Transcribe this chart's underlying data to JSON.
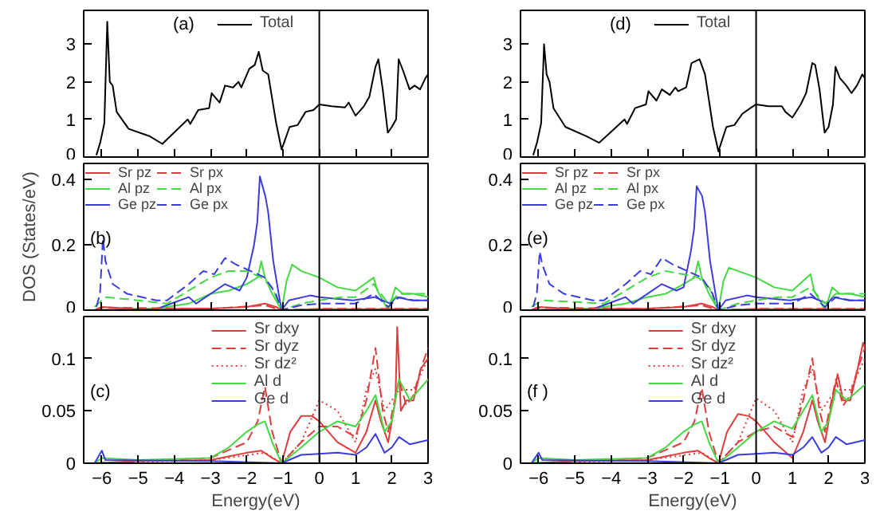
{
  "chart_data": [
    {
      "type": "line",
      "xlim": [
        -6.5,
        3
      ],
      "xticks": [
        -6,
        -5,
        -4,
        -3,
        -2,
        -1,
        0,
        1,
        2,
        3
      ],
      "ylim": [
        0,
        3.9
      ],
      "yticks": [
        0,
        1,
        2,
        3
      ],
      "tick_labels": "y",
      "legend": "top",
      "annotations": [
        "(a)"
      ],
      "ref_lines": [
        {
          "axis": "x",
          "value": 0,
          "color": "#000000"
        }
      ],
      "series": [
        {
          "name": "Total",
          "color": "#000000",
          "line_style": "solid",
          "x": [
            -6.15,
            -6.04,
            -5.93,
            -5.85,
            -5.78,
            -5.7,
            -5.59,
            -5.26,
            -4.67,
            -4.33,
            -3.63,
            -3.56,
            -3.34,
            -3.04,
            -2.97,
            -2.75,
            -2.6,
            -2.38,
            -2.23,
            -2.15,
            -1.93,
            -1.78,
            -1.67,
            -1.56,
            -1.41,
            -1.19,
            -1.04,
            -0.82,
            -0.6,
            -0.38,
            -0.16,
            0,
            0.34,
            0.71,
            0.81,
            1.0,
            1.23,
            1.38,
            1.55,
            1.63,
            1.75,
            1.89,
            2.0,
            2.12,
            2.19,
            2.31,
            2.49,
            2.63,
            2.78,
            2.93,
            3.0
          ],
          "values": [
            0.05,
            0.4,
            0.9,
            3.6,
            2.0,
            1.9,
            1.2,
            0.75,
            0.55,
            0.35,
            1.0,
            0.88,
            1.25,
            1.3,
            1.7,
            1.45,
            1.9,
            1.85,
            2.0,
            1.85,
            2.35,
            2.45,
            2.8,
            2.3,
            2.2,
            0.9,
            0.2,
            0.8,
            0.85,
            1.2,
            1.25,
            1.4,
            1.35,
            1.32,
            1.45,
            1.1,
            1.35,
            1.6,
            2.4,
            2.6,
            1.8,
            0.65,
            0.8,
            1.0,
            2.6,
            2.3,
            1.8,
            1.9,
            1.8,
            2.1,
            2.2
          ]
        }
      ]
    },
    {
      "type": "line",
      "xlim": [
        -6.5,
        3
      ],
      "xticks": [
        -6,
        -5,
        -4,
        -3,
        -2,
        -1,
        0,
        1,
        2,
        3
      ],
      "ylim": [
        0,
        0.45
      ],
      "yticks": [
        0,
        0.2,
        0.4
      ],
      "tick_labels": "y",
      "legend": "top",
      "ylabel": "DOS (States/eV)",
      "annotations": [
        "(b)"
      ],
      "ref_lines": [
        {
          "axis": "x",
          "value": 0,
          "color": "#000000"
        }
      ],
      "series": [
        {
          "name": "Sr pz",
          "color": "#e03c3c",
          "line_style": "solid",
          "x": [
            -6.2,
            -6,
            -5,
            -3,
            -2,
            -1.5,
            -1.2,
            -1.04,
            0,
            3
          ],
          "values": [
            0,
            0.01,
            0.003,
            0.005,
            0.01,
            0.02,
            0.01,
            0,
            0.003,
            0.003
          ]
        },
        {
          "name": "Al pz",
          "color": "#44d844",
          "line_style": "solid",
          "x": [
            -6.2,
            -4.5,
            -3.6,
            -3.0,
            -2.5,
            -2.0,
            -1.7,
            -1.6,
            -1.5,
            -1.3,
            -1.04,
            -0.9,
            -0.75,
            -0.5,
            0,
            0.5,
            1.0,
            1.5,
            1.6,
            1.9,
            2.1,
            2.3,
            2.6,
            3.0
          ],
          "values": [
            0,
            0.005,
            0.02,
            0.05,
            0.06,
            0.08,
            0.1,
            0.15,
            0.1,
            0.05,
            0,
            0.09,
            0.14,
            0.12,
            0.1,
            0.07,
            0.06,
            0.1,
            0.06,
            0,
            0.07,
            0.05,
            0.05,
            0.04
          ]
        },
        {
          "name": "Ge pz",
          "color": "#3c3ce0",
          "line_style": "solid",
          "x": [
            -6.2,
            -4.5,
            -3.6,
            -3.4,
            -3.0,
            -2.6,
            -2.2,
            -2.0,
            -1.8,
            -1.71,
            -1.64,
            -1.49,
            -1.41,
            -1.27,
            -1.12,
            -1.04,
            -0.84,
            -0.25,
            0,
            0.93,
            1.52,
            1.97,
            2.12,
            2.56,
            3.0
          ],
          "values": [
            0,
            0.003,
            0.04,
            0.02,
            0.05,
            0.08,
            0.06,
            0.1,
            0.2,
            0.27,
            0.41,
            0.35,
            0.3,
            0.15,
            0.05,
            0,
            0.03,
            0.045,
            0.04,
            0.03,
            0.04,
            0.02,
            0.04,
            0.03,
            0.03
          ]
        },
        {
          "name": "Sr px",
          "color": "#e03c3c",
          "line_style": "dashed",
          "x": [
            -6.2,
            -6,
            -3,
            -1.5,
            -1.04,
            0,
            3
          ],
          "values": [
            0,
            0.008,
            0.004,
            0.015,
            0,
            0.004,
            0.004
          ]
        },
        {
          "name": "Al px",
          "color": "#44d844",
          "line_style": "dashed",
          "x": [
            -6.2,
            -5.9,
            -5,
            -4.2,
            -3.6,
            -3.0,
            -2.5,
            -2,
            -1.6,
            -1.3,
            -1.04,
            -0.5,
            0,
            0.6,
            1.0,
            1.5,
            1.9,
            2.2,
            2.6,
            3.0
          ],
          "values": [
            0.01,
            0.04,
            0.03,
            0.02,
            0.06,
            0.1,
            0.12,
            0.12,
            0.1,
            0.07,
            0,
            0.02,
            0.03,
            0.04,
            0.04,
            0.08,
            0.02,
            0.05,
            0.05,
            0.05
          ]
        },
        {
          "name": "Ge px",
          "color": "#3c3ce0",
          "line_style": "dashed",
          "x": [
            -6.15,
            -6.05,
            -5.97,
            -5.9,
            -5.7,
            -5.3,
            -4.5,
            -4.2,
            -3.6,
            -3.2,
            -2.9,
            -2.6,
            -2.3,
            -1.9,
            -1.5,
            -1.2,
            -1.04,
            -0.5,
            0,
            0.5,
            1.0,
            1.5,
            1.9,
            2.2,
            2.6,
            3.0
          ],
          "values": [
            0.01,
            0.05,
            0.22,
            0.15,
            0.08,
            0.05,
            0.03,
            0.03,
            0.08,
            0.12,
            0.11,
            0.16,
            0.14,
            0.12,
            0.1,
            0.05,
            0,
            0.015,
            0.02,
            0.02,
            0.02,
            0.05,
            0.01,
            0.04,
            0.03,
            0.03
          ]
        }
      ]
    },
    {
      "type": "line",
      "xlim": [
        -6.5,
        3
      ],
      "xticks": [
        -6,
        -5,
        -4,
        -3,
        -2,
        -1,
        0,
        1,
        2,
        3
      ],
      "ylim": [
        0,
        0.14
      ],
      "yticks": [
        0,
        0.05,
        0.1
      ],
      "legend": "top",
      "xlabel": "Energy(eV)",
      "annotations": [
        "(c)"
      ],
      "ref_lines": [
        {
          "axis": "x",
          "value": 0,
          "color": "#000000"
        }
      ],
      "series": [
        {
          "name": "Sr dxy",
          "color": "#e03c3c",
          "line_style": "solid",
          "x": [
            -6.2,
            -5,
            -3,
            -2,
            -1.6,
            -1.3,
            -1.04,
            -0.8,
            -0.5,
            -0.2,
            0,
            0.5,
            1.0,
            1.3,
            1.55,
            1.7,
            1.9,
            2.1,
            2.15,
            2.25,
            2.4,
            2.6,
            2.8,
            3.0
          ],
          "values": [
            0,
            0.002,
            0.003,
            0.01,
            0.012,
            0.005,
            0,
            0.03,
            0.045,
            0.045,
            0.04,
            0.02,
            0.01,
            0.03,
            0.06,
            0.04,
            0.02,
            0.06,
            0.13,
            0.05,
            0.06,
            0.06,
            0.09,
            0.1
          ]
        },
        {
          "name": "Sr dyz",
          "color": "#e03c3c",
          "line_style": "dashed",
          "x": [
            -6.2,
            -3,
            -2,
            -1.7,
            -1.5,
            -1.3,
            -1.04,
            -0.5,
            0,
            0.5,
            1.0,
            1.3,
            1.55,
            1.75,
            1.9,
            2.2,
            2.4,
            2.6,
            2.8,
            3.0
          ],
          "values": [
            0,
            0.005,
            0.02,
            0.04,
            0.073,
            0.03,
            0,
            0.02,
            0.035,
            0.035,
            0.025,
            0.06,
            0.11,
            0.05,
            0.03,
            0.08,
            0.055,
            0.065,
            0.09,
            0.11
          ]
        },
        {
          "name": "Sr dz²",
          "color": "#e03c3c",
          "line_style": "dotted",
          "x": [
            -6.2,
            -3,
            -1.5,
            -1.04,
            -0.5,
            0,
            0.5,
            1.0,
            1.3,
            1.55,
            1.8,
            2.2,
            2.6,
            3.0
          ],
          "values": [
            0,
            0.003,
            0.01,
            0,
            0.02,
            0.06,
            0.05,
            0.02,
            0.07,
            0.09,
            0.05,
            0.07,
            0.07,
            0.1
          ]
        },
        {
          "name": "Al d",
          "color": "#44d844",
          "line_style": "solid",
          "x": [
            -6.2,
            -6,
            -5,
            -3,
            -2.5,
            -2,
            -1.7,
            -1.5,
            -1.3,
            -1.04,
            -0.5,
            0,
            0.5,
            1.0,
            1.3,
            1.55,
            1.8,
            2.0,
            2.2,
            2.5,
            3.0
          ],
          "values": [
            0,
            0.005,
            0.003,
            0.005,
            0.015,
            0.03,
            0.037,
            0.04,
            0.02,
            0,
            0.015,
            0.03,
            0.04,
            0.035,
            0.05,
            0.065,
            0.03,
            0.04,
            0.08,
            0.06,
            0.08
          ]
        },
        {
          "name": "Ge d",
          "color": "#3c3ce0",
          "line_style": "solid",
          "x": [
            -6.2,
            -6,
            -5.9,
            -3,
            -1.04,
            -0.5,
            0,
            0.5,
            1.0,
            1.3,
            1.55,
            1.8,
            2.0,
            2.2,
            2.5,
            3.0
          ],
          "values": [
            0,
            0.012,
            0.003,
            0.002,
            0,
            0.008,
            0.009,
            0.01,
            0.008,
            0.015,
            0.028,
            0.01,
            0.015,
            0.025,
            0.018,
            0.022
          ]
        }
      ]
    },
    {
      "type": "line",
      "xlim": [
        -6.5,
        3
      ],
      "xticks": [
        -6,
        -5,
        -4,
        -3,
        -2,
        -1,
        0,
        1,
        2,
        3
      ],
      "ylim": [
        0,
        3.9
      ],
      "yticks": [
        0,
        1,
        2,
        3
      ],
      "tick_labels": "y",
      "legend": "top",
      "annotations": [
        "(d)"
      ],
      "ref_lines": [
        {
          "axis": "x",
          "value": 0,
          "color": "#000000"
        }
      ],
      "series": [
        {
          "name": "Total",
          "color": "#000000",
          "line_style": "solid",
          "x": [
            -6.15,
            -6.04,
            -5.93,
            -5.85,
            -5.78,
            -5.7,
            -5.59,
            -5.26,
            -4.67,
            -4.33,
            -3.63,
            -3.56,
            -3.34,
            -3.04,
            -2.97,
            -2.75,
            -2.6,
            -2.38,
            -2.23,
            -2.15,
            -1.93,
            -1.78,
            -1.67,
            -1.56,
            -1.41,
            -1.19,
            -1.04,
            -0.82,
            -0.6,
            -0.38,
            -0.16,
            0,
            0.34,
            0.71,
            0.81,
            1.0,
            1.23,
            1.38,
            1.55,
            1.63,
            1.75,
            1.89,
            2.0,
            2.12,
            2.19,
            2.31,
            2.49,
            2.63,
            2.78,
            2.93,
            3.0
          ],
          "values": [
            0.05,
            0.4,
            0.9,
            3.0,
            2.2,
            2.0,
            1.3,
            0.8,
            0.55,
            0.38,
            1.0,
            0.88,
            1.3,
            1.4,
            1.75,
            1.5,
            1.8,
            1.65,
            1.85,
            1.75,
            1.85,
            2.5,
            2.55,
            2.6,
            2.2,
            0.8,
            0.15,
            0.8,
            0.85,
            1.15,
            1.3,
            1.4,
            1.35,
            1.35,
            1.2,
            1.05,
            1.4,
            1.7,
            2.5,
            2.45,
            1.8,
            0.65,
            0.8,
            1.4,
            2.4,
            2.1,
            1.9,
            1.7,
            1.9,
            2.2,
            2.1
          ]
        }
      ]
    },
    {
      "type": "line",
      "xlim": [
        -6.5,
        3
      ],
      "xticks": [
        -6,
        -5,
        -4,
        -3,
        -2,
        -1,
        0,
        1,
        2,
        3
      ],
      "ylim": [
        0,
        0.45
      ],
      "yticks": [
        0,
        0.2,
        0.4
      ],
      "tick_labels": "y",
      "legend": "top",
      "annotations": [
        "(e)"
      ],
      "ref_lines": [
        {
          "axis": "x",
          "value": 0,
          "color": "#000000"
        }
      ],
      "series": [
        {
          "name": "Sr pz",
          "color": "#e03c3c",
          "line_style": "solid",
          "x": [
            -6.2,
            -6,
            -5,
            -3,
            -2,
            -1.5,
            -1.2,
            -1.04,
            0,
            3
          ],
          "values": [
            0,
            0.01,
            0.003,
            0.005,
            0.01,
            0.02,
            0.01,
            0,
            0.003,
            0.003
          ]
        },
        {
          "name": "Al pz",
          "color": "#44d844",
          "line_style": "solid",
          "x": [
            -6.2,
            -4.5,
            -3.6,
            -3.0,
            -2.5,
            -2.0,
            -1.7,
            -1.6,
            -1.5,
            -1.3,
            -1.04,
            -0.9,
            -0.75,
            -0.5,
            0,
            0.5,
            1.0,
            1.5,
            1.6,
            1.9,
            2.1,
            2.3,
            2.6,
            3.0
          ],
          "values": [
            0,
            0.005,
            0.02,
            0.04,
            0.05,
            0.08,
            0.1,
            0.15,
            0.1,
            0.05,
            0,
            0.09,
            0.13,
            0.12,
            0.1,
            0.07,
            0.06,
            0.11,
            0.06,
            0,
            0.07,
            0.05,
            0.05,
            0.04
          ]
        },
        {
          "name": "Ge pz",
          "color": "#3c3ce0",
          "line_style": "solid",
          "x": [
            -6.2,
            -4.5,
            -3.6,
            -3.4,
            -3.0,
            -2.6,
            -2.2,
            -2.0,
            -1.8,
            -1.71,
            -1.64,
            -1.49,
            -1.41,
            -1.27,
            -1.12,
            -1.04,
            -0.84,
            -0.25,
            0,
            0.93,
            1.52,
            1.97,
            2.12,
            2.56,
            3.0
          ],
          "values": [
            0,
            0.003,
            0.04,
            0.02,
            0.05,
            0.08,
            0.06,
            0.07,
            0.18,
            0.25,
            0.38,
            0.35,
            0.3,
            0.15,
            0.05,
            0,
            0.03,
            0.045,
            0.04,
            0.03,
            0.04,
            0.02,
            0.04,
            0.03,
            0.03
          ]
        },
        {
          "name": "Sr px",
          "color": "#e03c3c",
          "line_style": "dashed",
          "x": [
            -6.2,
            -6,
            -3,
            -1.5,
            -1.04,
            0,
            3
          ],
          "values": [
            0,
            0.008,
            0.004,
            0.015,
            0,
            0.004,
            0.004
          ]
        },
        {
          "name": "Al px",
          "color": "#44d844",
          "line_style": "dashed",
          "x": [
            -6.2,
            -5.9,
            -5,
            -4.2,
            -3.6,
            -3.0,
            -2.5,
            -2,
            -1.6,
            -1.3,
            -1.04,
            -0.5,
            0,
            0.6,
            1.0,
            1.5,
            1.9,
            2.2,
            2.6,
            3.0
          ],
          "values": [
            0.01,
            0.03,
            0.025,
            0.02,
            0.06,
            0.1,
            0.12,
            0.11,
            0.1,
            0.07,
            0,
            0.02,
            0.03,
            0.04,
            0.04,
            0.07,
            0.02,
            0.05,
            0.05,
            0.05
          ]
        },
        {
          "name": "Ge px",
          "color": "#3c3ce0",
          "line_style": "dashed",
          "x": [
            -6.15,
            -6.05,
            -5.97,
            -5.9,
            -5.7,
            -5.3,
            -4.5,
            -4.2,
            -3.6,
            -3.2,
            -2.9,
            -2.6,
            -2.3,
            -1.9,
            -1.5,
            -1.2,
            -1.04,
            -0.5,
            0,
            0.5,
            1.0,
            1.5,
            1.9,
            2.2,
            2.6,
            3.0
          ],
          "values": [
            0.01,
            0.05,
            0.18,
            0.14,
            0.08,
            0.05,
            0.03,
            0.03,
            0.08,
            0.12,
            0.11,
            0.16,
            0.14,
            0.12,
            0.1,
            0.05,
            0,
            0.015,
            0.02,
            0.02,
            0.02,
            0.05,
            0.01,
            0.04,
            0.03,
            0.03
          ]
        }
      ]
    },
    {
      "type": "line",
      "xlim": [
        -6.5,
        3
      ],
      "xticks": [
        -6,
        -5,
        -4,
        -3,
        -2,
        -1,
        0,
        1,
        2,
        3
      ],
      "ylim": [
        0,
        0.14
      ],
      "yticks": [
        0,
        0.05,
        0.1
      ],
      "legend": "top",
      "xlabel": "Energy(eV)",
      "annotations": [
        "(f )"
      ],
      "ref_lines": [
        {
          "axis": "x",
          "value": 0,
          "color": "#000000"
        }
      ],
      "series": [
        {
          "name": "Sr dxy",
          "color": "#e03c3c",
          "line_style": "solid",
          "x": [
            -6.2,
            -5,
            -3,
            -2,
            -1.6,
            -1.3,
            -1.04,
            -0.8,
            -0.5,
            -0.2,
            0,
            0.5,
            1.0,
            1.3,
            1.55,
            1.7,
            1.9,
            2.1,
            2.25,
            2.4,
            2.6,
            2.8,
            2.95,
            3.0
          ],
          "values": [
            0,
            0.002,
            0.003,
            0.01,
            0.012,
            0.005,
            0,
            0.03,
            0.047,
            0.045,
            0.04,
            0.02,
            0.005,
            0.03,
            0.06,
            0.04,
            0.02,
            0.06,
            0.085,
            0.06,
            0.06,
            0.09,
            0.115,
            0.11
          ]
        },
        {
          "name": "Sr dyz",
          "color": "#e03c3c",
          "line_style": "dashed",
          "x": [
            -6.2,
            -3,
            -2,
            -1.7,
            -1.5,
            -1.3,
            -1.04,
            -0.5,
            0,
            0.5,
            1.0,
            1.3,
            1.55,
            1.75,
            1.9,
            2.2,
            2.4,
            2.6,
            2.8,
            3.0
          ],
          "values": [
            0,
            0.005,
            0.02,
            0.04,
            0.072,
            0.03,
            0,
            0.02,
            0.03,
            0.035,
            0.025,
            0.06,
            0.1,
            0.05,
            0.03,
            0.08,
            0.055,
            0.065,
            0.09,
            0.11
          ]
        },
        {
          "name": "Sr dz²",
          "color": "#e03c3c",
          "line_style": "dotted",
          "x": [
            -6.2,
            -3,
            -1.5,
            -1.04,
            -0.5,
            0,
            0.5,
            1.0,
            1.3,
            1.55,
            1.8,
            2.2,
            2.6,
            3.0
          ],
          "values": [
            0,
            0.003,
            0.01,
            0,
            0.02,
            0.062,
            0.05,
            0.02,
            0.07,
            0.09,
            0.05,
            0.07,
            0.07,
            0.1
          ]
        },
        {
          "name": "Al d",
          "color": "#44d844",
          "line_style": "solid",
          "x": [
            -6.2,
            -6,
            -5,
            -3,
            -2.5,
            -2,
            -1.7,
            -1.5,
            -1.3,
            -1.04,
            -0.5,
            0,
            0.5,
            1.0,
            1.3,
            1.55,
            1.8,
            2.0,
            2.2,
            2.5,
            3.0
          ],
          "values": [
            0,
            0.005,
            0.003,
            0.005,
            0.015,
            0.03,
            0.037,
            0.04,
            0.02,
            0,
            0.015,
            0.03,
            0.04,
            0.033,
            0.05,
            0.065,
            0.03,
            0.04,
            0.07,
            0.06,
            0.075
          ]
        },
        {
          "name": "Ge d",
          "color": "#3c3ce0",
          "line_style": "solid",
          "x": [
            -6.2,
            -6,
            -5.9,
            -3,
            -1.04,
            -0.5,
            0,
            0.5,
            1.0,
            1.3,
            1.55,
            1.8,
            2.0,
            2.2,
            2.5,
            3.0
          ],
          "values": [
            0,
            0.01,
            0.003,
            0.002,
            0,
            0.008,
            0.009,
            0.01,
            0.008,
            0.015,
            0.025,
            0.01,
            0.015,
            0.025,
            0.018,
            0.022
          ]
        }
      ]
    }
  ]
}
